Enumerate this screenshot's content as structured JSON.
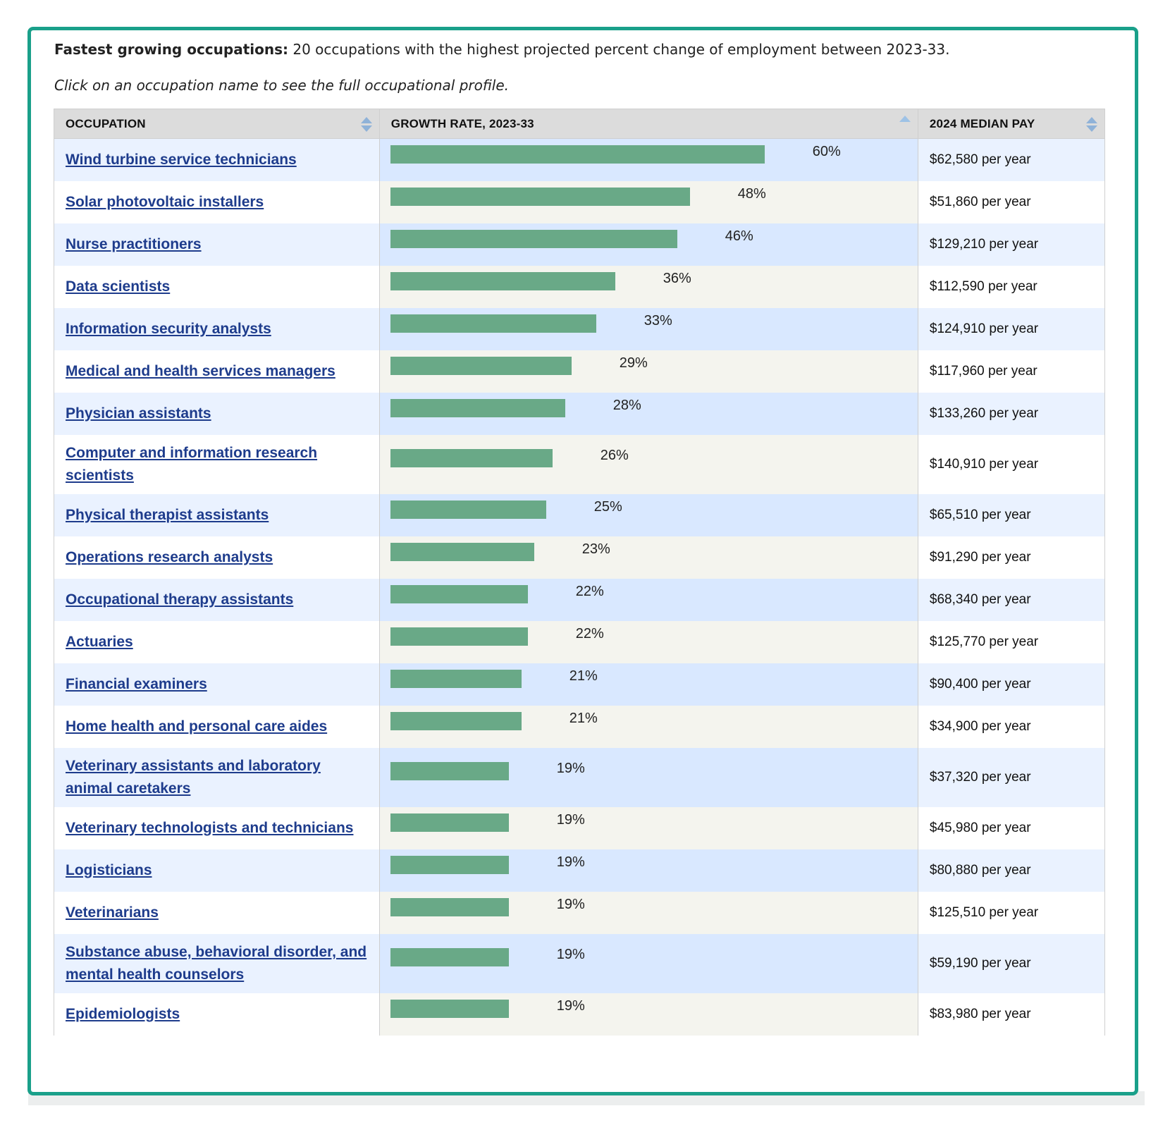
{
  "intro": {
    "title_bold": "Fastest growing occupations:",
    "title_rest": " 20 occupations with the highest projected percent change of employment between 2023-33.",
    "note": "Click on an occupation name to see the full occupational profile."
  },
  "table": {
    "headers": {
      "occupation": "OCCUPATION",
      "growth": "GROWTH RATE, 2023-33",
      "pay": "2024 MEDIAN PAY"
    },
    "rows": [
      {
        "occupation": "Wind turbine service technicians",
        "growth_value": 60,
        "growth": "60%",
        "pay": "$62,580 per year"
      },
      {
        "occupation": "Solar photovoltaic installers",
        "growth_value": 48,
        "growth": "48%",
        "pay": "$51,860 per year"
      },
      {
        "occupation": "Nurse practitioners",
        "growth_value": 46,
        "growth": "46%",
        "pay": "$129,210 per year"
      },
      {
        "occupation": "Data scientists",
        "growth_value": 36,
        "growth": "36%",
        "pay": "$112,590 per year"
      },
      {
        "occupation": "Information security analysts",
        "growth_value": 33,
        "growth": "33%",
        "pay": "$124,910 per year"
      },
      {
        "occupation": "Medical and health services managers",
        "growth_value": 29,
        "growth": "29%",
        "pay": "$117,960 per year"
      },
      {
        "occupation": "Physician assistants",
        "growth_value": 28,
        "growth": "28%",
        "pay": "$133,260 per year"
      },
      {
        "occupation": "Computer and information research scientists",
        "growth_value": 26,
        "growth": "26%",
        "pay": "$140,910 per year"
      },
      {
        "occupation": "Physical therapist assistants",
        "growth_value": 25,
        "growth": "25%",
        "pay": "$65,510 per year"
      },
      {
        "occupation": "Operations research analysts",
        "growth_value": 23,
        "growth": "23%",
        "pay": "$91,290 per year"
      },
      {
        "occupation": "Occupational therapy assistants",
        "growth_value": 22,
        "growth": "22%",
        "pay": "$68,340 per year"
      },
      {
        "occupation": "Actuaries",
        "growth_value": 22,
        "growth": "22%",
        "pay": "$125,770 per year"
      },
      {
        "occupation": "Financial examiners",
        "growth_value": 21,
        "growth": "21%",
        "pay": "$90,400 per year"
      },
      {
        "occupation": "Home health and personal care aides",
        "growth_value": 21,
        "growth": "21%",
        "pay": "$34,900 per year"
      },
      {
        "occupation": "Veterinary assistants and laboratory animal caretakers",
        "growth_value": 19,
        "growth": "19%",
        "pay": "$37,320 per year"
      },
      {
        "occupation": "Veterinary technologists and technicians",
        "growth_value": 19,
        "growth": "19%",
        "pay": "$45,980 per year"
      },
      {
        "occupation": "Logisticians",
        "growth_value": 19,
        "growth": "19%",
        "pay": "$80,880 per year"
      },
      {
        "occupation": "Veterinarians",
        "growth_value": 19,
        "growth": "19%",
        "pay": "$125,510 per year"
      },
      {
        "occupation": "Substance abuse, behavioral disorder, and mental health counselors",
        "growth_value": 19,
        "growth": "19%",
        "pay": "$59,190 per year"
      },
      {
        "occupation": "Epidemiologists",
        "growth_value": 19,
        "growth": "19%",
        "pay": "$83,980 per year"
      }
    ]
  },
  "colors": {
    "panel_border": "#1aa08a",
    "bar": "#69a987",
    "link": "#1e3c8c"
  }
}
